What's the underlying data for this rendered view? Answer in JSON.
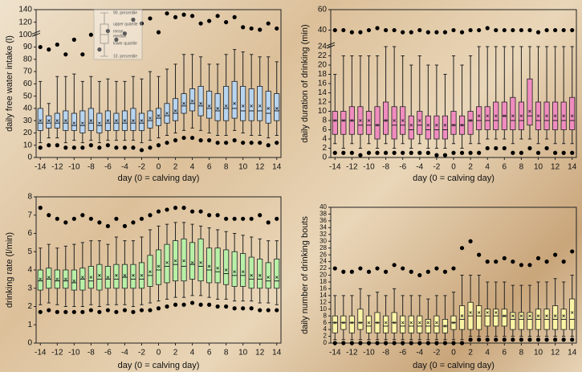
{
  "chart_data": [
    {
      "type": "box",
      "ylabel": "daily free water intake (l)",
      "xlabel": "day (0 = calving day)",
      "color": "#b7d4f0",
      "x": [
        -14,
        -13,
        -12,
        -11,
        -10,
        -9,
        -8,
        -7,
        -6,
        -5,
        -4,
        -3,
        -2,
        -1,
        0,
        1,
        2,
        3,
        4,
        5,
        6,
        7,
        8,
        9,
        10,
        11,
        12,
        13,
        14
      ],
      "xlim": [
        -14.5,
        14.5
      ],
      "xticks": [
        -14,
        -12,
        -10,
        -8,
        -6,
        -4,
        -2,
        0,
        2,
        4,
        6,
        8,
        10,
        12,
        14
      ],
      "ylim": [
        0,
        140
      ],
      "ybreak": 100,
      "yticks": [
        0,
        10,
        20,
        30,
        40,
        50,
        60,
        70,
        80,
        90,
        100,
        120,
        140
      ],
      "legend_labels": [
        "90. percentile",
        "upper quartile",
        "mean",
        "median",
        "lower quartile",
        "10. percentile"
      ],
      "whisker_low": [
        12,
        16,
        16,
        12,
        14,
        12,
        14,
        12,
        14,
        14,
        14,
        14,
        12,
        14,
        16,
        18,
        20,
        22,
        24,
        22,
        20,
        18,
        18,
        22,
        20,
        18,
        18,
        16,
        18
      ],
      "q1": [
        22,
        24,
        24,
        22,
        22,
        20,
        22,
        20,
        22,
        22,
        22,
        22,
        22,
        24,
        26,
        28,
        30,
        36,
        38,
        34,
        32,
        30,
        30,
        32,
        30,
        30,
        30,
        28,
        30
      ],
      "median": [
        28,
        28,
        28,
        28,
        26,
        26,
        28,
        26,
        28,
        28,
        28,
        28,
        28,
        30,
        32,
        34,
        36,
        42,
        44,
        42,
        40,
        38,
        40,
        40,
        38,
        38,
        38,
        36,
        38
      ],
      "q3": [
        40,
        34,
        36,
        38,
        36,
        38,
        40,
        36,
        38,
        36,
        38,
        40,
        36,
        38,
        40,
        44,
        48,
        52,
        56,
        58,
        54,
        52,
        58,
        62,
        58,
        56,
        58,
        54,
        52
      ],
      "whisker_high": [
        62,
        44,
        66,
        66,
        68,
        62,
        66,
        62,
        64,
        62,
        62,
        66,
        64,
        70,
        66,
        72,
        76,
        84,
        84,
        82,
        76,
        76,
        84,
        88,
        86,
        84,
        82,
        82,
        78
      ],
      "mean": [
        30,
        30,
        30,
        30,
        28,
        28,
        30,
        28,
        30,
        30,
        30,
        30,
        30,
        32,
        34,
        36,
        38,
        44,
        46,
        44,
        42,
        40,
        42,
        44,
        42,
        42,
        42,
        40,
        40
      ],
      "outliers_low": [
        8,
        10,
        10,
        8,
        8,
        8,
        10,
        8,
        10,
        8,
        8,
        8,
        6,
        8,
        10,
        12,
        14,
        16,
        16,
        14,
        14,
        12,
        12,
        14,
        12,
        12,
        12,
        10,
        12
      ],
      "outliers_high": [
        90,
        88,
        92,
        84,
        96,
        84,
        100,
        88,
        106,
        96,
        102,
        124,
        118,
        126,
        104,
        134,
        128,
        132,
        130,
        118,
        122,
        130,
        120,
        128,
        112,
        110,
        108,
        118,
        110
      ]
    },
    {
      "type": "box",
      "ylabel": "daily duration of drinking (min)",
      "xlabel": "day (0 = calving day)",
      "color": "#f08cbf",
      "x": [
        -14,
        -13,
        -12,
        -11,
        -10,
        -9,
        -8,
        -7,
        -6,
        -5,
        -4,
        -3,
        -2,
        -1,
        0,
        1,
        2,
        3,
        4,
        5,
        6,
        7,
        8,
        9,
        10,
        11,
        12,
        13,
        14
      ],
      "xlim": [
        -14.5,
        14.5
      ],
      "xticks": [
        -14,
        -12,
        -10,
        -8,
        -6,
        -4,
        -2,
        0,
        2,
        4,
        6,
        8,
        10,
        12,
        14
      ],
      "ylim": [
        0,
        60
      ],
      "ybreak": 24,
      "yticks": [
        0,
        2,
        4,
        6,
        8,
        10,
        12,
        14,
        16,
        18,
        20,
        22,
        24,
        40,
        60
      ],
      "whisker_low": [
        3,
        2,
        3,
        2,
        3,
        2,
        3,
        2,
        3,
        2,
        3,
        2,
        2,
        2,
        3,
        2,
        3,
        3,
        4,
        4,
        4,
        3,
        4,
        4,
        3,
        4,
        3,
        3,
        3
      ],
      "q1": [
        5,
        5,
        5,
        5,
        5,
        4,
        5,
        4,
        5,
        4,
        5,
        4,
        4,
        4,
        5,
        5,
        5,
        6,
        6,
        6,
        6,
        6,
        6,
        7,
        6,
        6,
        6,
        6,
        6
      ],
      "median": [
        8,
        8,
        8,
        7,
        7,
        7,
        8,
        7,
        7,
        6,
        7,
        6,
        6,
        6,
        7,
        7,
        8,
        8,
        8,
        8,
        9,
        8,
        8,
        9,
        8,
        8,
        8,
        8,
        8
      ],
      "q3": [
        10,
        10,
        11,
        11,
        10,
        11,
        12,
        11,
        11,
        9,
        10,
        9,
        9,
        9,
        10,
        9,
        10,
        11,
        11,
        12,
        12,
        13,
        12,
        17,
        12,
        12,
        12,
        12,
        13
      ],
      "whisker_high": [
        18,
        22,
        22,
        22,
        22,
        22,
        24,
        24,
        22,
        20,
        22,
        20,
        20,
        18,
        22,
        20,
        22,
        24,
        24,
        24,
        24,
        24,
        24,
        24,
        24,
        24,
        24,
        24,
        24
      ],
      "mean": [
        8,
        8,
        8,
        8,
        8,
        7,
        8,
        8,
        8,
        7,
        8,
        7,
        7,
        7,
        7,
        7,
        8,
        9,
        9,
        9,
        9,
        9,
        9,
        10,
        9,
        9,
        9,
        9,
        9
      ],
      "outliers_low": [
        1,
        1,
        1,
        0.5,
        1,
        1,
        1,
        1,
        1,
        1,
        1,
        1,
        0.5,
        0.5,
        1,
        1,
        1,
        1,
        2,
        2,
        2,
        1,
        1,
        2,
        1,
        2,
        1,
        1,
        1
      ],
      "outliers_high": [
        40,
        40,
        38,
        38,
        40,
        42,
        40,
        40,
        38,
        38,
        40,
        38,
        38,
        38,
        40,
        38,
        40,
        40,
        42,
        40,
        40,
        40,
        40,
        40,
        38,
        40,
        40,
        40,
        40
      ]
    },
    {
      "type": "box",
      "ylabel": "drinking rate (l/min)",
      "xlabel": "day (0 = calving day)",
      "color": "#b8f0a8",
      "x": [
        -14,
        -13,
        -12,
        -11,
        -10,
        -9,
        -8,
        -7,
        -6,
        -5,
        -4,
        -3,
        -2,
        -1,
        0,
        1,
        2,
        3,
        4,
        5,
        6,
        7,
        8,
        9,
        10,
        11,
        12,
        13,
        14
      ],
      "xlim": [
        -14.5,
        14.5
      ],
      "xticks": [
        -14,
        -12,
        -10,
        -8,
        -6,
        -4,
        -2,
        0,
        2,
        4,
        6,
        8,
        10,
        12,
        14
      ],
      "ylim": [
        0,
        8
      ],
      "yticks": [
        0,
        1,
        2,
        3,
        4,
        5,
        6,
        7,
        8
      ],
      "whisker_low": [
        2.1,
        2.2,
        2.1,
        2,
        2,
        2,
        2.1,
        2,
        2.1,
        2.1,
        2.1,
        2,
        2.1,
        2.2,
        2.3,
        2.4,
        2.5,
        2.5,
        2.6,
        2.6,
        2.5,
        2.4,
        2.4,
        2.3,
        2.3,
        2.3,
        2.2,
        2.2,
        2.1
      ],
      "q1": [
        2.9,
        3,
        3,
        3,
        2.9,
        2.9,
        3,
        2.9,
        3,
        3,
        3,
        3,
        3,
        3.1,
        3.2,
        3.3,
        3.4,
        3.4,
        3.5,
        3.4,
        3.3,
        3.3,
        3.2,
        3.1,
        3.1,
        3,
        3,
        3,
        3
      ],
      "median": [
        3.4,
        3.5,
        3.4,
        3.4,
        3.3,
        3.5,
        3.4,
        3.5,
        3.5,
        3.5,
        3.6,
        3.5,
        3.5,
        3.7,
        4,
        4.2,
        4.3,
        4.2,
        4.3,
        4.2,
        4,
        3.9,
        3.8,
        3.7,
        3.7,
        3.5,
        3.5,
        3.4,
        3.4
      ],
      "q3": [
        4,
        4.1,
        4,
        4,
        4,
        4.1,
        4.2,
        4.3,
        4.2,
        4.3,
        4.3,
        4.3,
        4.4,
        4.8,
        5.1,
        5.4,
        5.6,
        5.7,
        5.5,
        5.7,
        5.2,
        5.2,
        5.1,
        5,
        4.9,
        4.7,
        4.6,
        4.4,
        4.6
      ],
      "whisker_high": [
        5.2,
        5.4,
        5.2,
        5.3,
        5.4,
        5.5,
        5.6,
        5.6,
        5.4,
        5.8,
        5.6,
        5.6,
        5.8,
        6.2,
        6.4,
        6.5,
        6.6,
        6.6,
        6.5,
        6.4,
        6.3,
        6.2,
        6.1,
        6,
        5.9,
        5.8,
        5.7,
        5.6,
        5.6
      ],
      "mean": [
        3.5,
        3.6,
        3.5,
        3.5,
        3.4,
        3.6,
        3.6,
        3.7,
        3.6,
        3.7,
        3.7,
        3.7,
        3.7,
        3.9,
        4.2,
        4.4,
        4.5,
        4.5,
        4.4,
        4.4,
        4.2,
        4.1,
        4,
        3.9,
        3.9,
        3.7,
        3.7,
        3.6,
        3.6
      ],
      "outliers_low": [
        1.7,
        1.8,
        1.7,
        1.7,
        1.7,
        1.7,
        1.8,
        1.7,
        1.8,
        1.7,
        1.8,
        1.7,
        1.8,
        1.8,
        1.9,
        2,
        2.1,
        2.1,
        2.2,
        2.1,
        2.1,
        2,
        2,
        1.9,
        1.9,
        1.9,
        1.8,
        1.8,
        1.8
      ],
      "outliers_high": [
        7.4,
        7,
        6.8,
        6.6,
        6.8,
        7,
        6.8,
        6.6,
        6.4,
        6.8,
        6.4,
        6.6,
        6.8,
        7,
        7.2,
        7.3,
        7.4,
        7.4,
        7.2,
        7.2,
        7,
        7,
        6.8,
        6.8,
        6.8,
        6.8,
        7,
        6.6,
        6.8
      ]
    },
    {
      "type": "box",
      "ylabel": "daily number of drinking bouts",
      "xlabel": "day (0 = calving day)",
      "color": "#fbf3a6",
      "x": [
        -14,
        -13,
        -12,
        -11,
        -10,
        -9,
        -8,
        -7,
        -6,
        -5,
        -4,
        -3,
        -2,
        -1,
        0,
        1,
        2,
        3,
        4,
        5,
        6,
        7,
        8,
        9,
        10,
        11,
        12,
        13,
        14
      ],
      "xlim": [
        -14.5,
        14.5
      ],
      "xticks": [
        -14,
        -12,
        -10,
        -8,
        -6,
        -4,
        -2,
        0,
        2,
        4,
        6,
        8,
        10,
        12,
        14
      ],
      "ylim": [
        0,
        40
      ],
      "yticks": [
        0,
        2,
        4,
        6,
        8,
        10,
        12,
        14,
        16,
        18,
        20,
        22,
        24,
        26,
        28,
        30,
        32,
        34,
        36,
        38,
        40
      ],
      "whisker_low": [
        1,
        1,
        1,
        1,
        1,
        1,
        1,
        1,
        1,
        1,
        1,
        1,
        1,
        1,
        1,
        1,
        2,
        2,
        2,
        2,
        2,
        2,
        2,
        2,
        2,
        2,
        2,
        2,
        2
      ],
      "q1": [
        3,
        4,
        3,
        4,
        3,
        3,
        3,
        3,
        3,
        3,
        3,
        3,
        3,
        3,
        4,
        4,
        4,
        4,
        5,
        5,
        5,
        4,
        4,
        4,
        4,
        4,
        4,
        4,
        4
      ],
      "median": [
        6,
        6,
        6,
        6,
        5,
        6,
        5,
        6,
        5,
        5,
        5,
        5,
        5,
        5,
        6,
        7,
        8,
        8,
        8,
        8,
        8,
        7,
        7,
        7,
        7,
        7,
        7,
        7,
        7
      ],
      "q3": [
        8,
        8,
        8,
        10,
        8,
        9,
        8,
        9,
        8,
        8,
        8,
        7,
        8,
        7,
        8,
        11,
        12,
        11,
        10,
        10,
        10,
        9,
        9,
        9,
        10,
        10,
        11,
        10,
        13
      ],
      "whisker_high": [
        14,
        14,
        14,
        16,
        14,
        15,
        14,
        16,
        14,
        14,
        14,
        13,
        14,
        14,
        15,
        20,
        20,
        20,
        18,
        18,
        18,
        17,
        17,
        17,
        18,
        18,
        19,
        18,
        20
      ],
      "mean": [
        6,
        6,
        6,
        6,
        6,
        6,
        6,
        6,
        6,
        6,
        6,
        6,
        6,
        5,
        6,
        8,
        9,
        9,
        9,
        9,
        8,
        8,
        8,
        8,
        8,
        8,
        8,
        8,
        9
      ],
      "outliers_low": [
        0,
        0,
        0,
        0,
        0,
        0,
        0,
        0,
        0,
        0,
        0,
        0,
        0,
        0,
        0,
        0,
        1,
        1,
        1,
        1,
        1,
        1,
        1,
        1,
        1,
        1,
        1,
        1,
        1
      ],
      "outliers_high": [
        22,
        21,
        21,
        22,
        21,
        22,
        21,
        23,
        22,
        21,
        20,
        21,
        22,
        21,
        22,
        28,
        30,
        26,
        24,
        24,
        25,
        24,
        23,
        23,
        25,
        24,
        26,
        24,
        27
      ]
    }
  ]
}
